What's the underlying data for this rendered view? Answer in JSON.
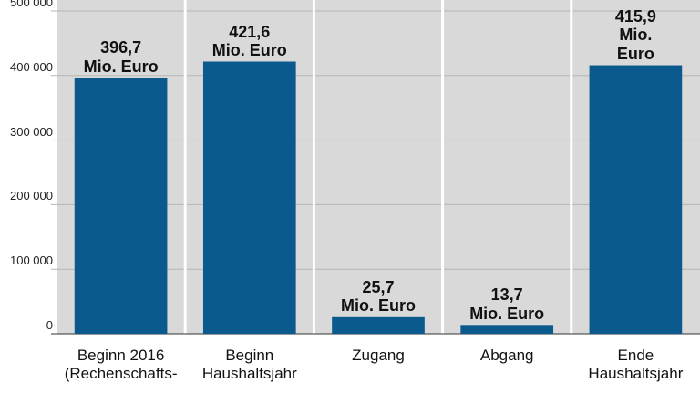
{
  "chart_data": {
    "type": "bar",
    "categories": [
      "Beginn 2016\n(Rechenschafts-",
      "Beginn\nHaushaltsjahr",
      "Zugang",
      "Abgang",
      "Ende\nHaushaltsjahr"
    ],
    "values": [
      396700,
      421600,
      25700,
      13700,
      415900
    ],
    "value_labels": [
      "396,7\nMio. Euro",
      "421,6\nMio. Euro",
      "25,7\nMio. Euro",
      "13,7\nMio. Euro",
      "415,9\nMio. Euro"
    ],
    "color": "#0b5a8e",
    "ylim": [
      0,
      500000
    ],
    "yticks": [
      0,
      {
        "value": 100000,
        "label": "100 000"
      },
      {
        "value": 200000,
        "label": "200 000"
      },
      {
        "value": 300000,
        "label": "300 000"
      },
      {
        "value": 400000,
        "label": "400 000"
      },
      {
        "value": 500000,
        "label": "500 000"
      }
    ],
    "grid": true
  }
}
